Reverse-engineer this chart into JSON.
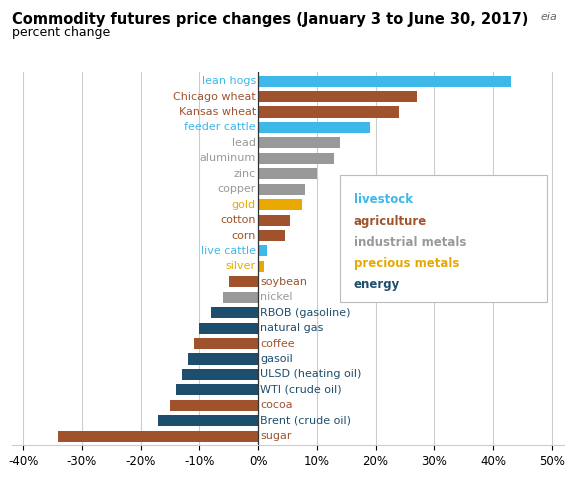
{
  "title": "Commodity futures price changes (January 3 to June 30, 2017)",
  "subtitle": "percent change",
  "categories": [
    "lean hogs",
    "Chicago wheat",
    "Kansas wheat",
    "feeder cattle",
    "lead",
    "aluminum",
    "zinc",
    "copper",
    "gold",
    "cotton",
    "corn",
    "live cattle",
    "silver",
    "soybean",
    "nickel",
    "RBOB (gasoline)",
    "natural gas",
    "coffee",
    "gasoil",
    "ULSD (heating oil)",
    "WTI (crude oil)",
    "cocoa",
    "Brent (crude oil)",
    "sugar"
  ],
  "values": [
    43,
    27,
    24,
    19,
    14,
    13,
    10,
    8,
    7.5,
    5.5,
    4.5,
    1.5,
    1,
    -5,
    -6,
    -8,
    -10,
    -11,
    -12,
    -13,
    -14,
    -15,
    -17,
    -34
  ],
  "colors": [
    "#3db8e8",
    "#a0522d",
    "#a0522d",
    "#3db8e8",
    "#999999",
    "#999999",
    "#999999",
    "#999999",
    "#e8a800",
    "#a0522d",
    "#a0522d",
    "#3db8e8",
    "#e8a800",
    "#a0522d",
    "#999999",
    "#1d4e6e",
    "#1d4e6e",
    "#a0522d",
    "#1d4e6e",
    "#1d4e6e",
    "#1d4e6e",
    "#a0522d",
    "#1d4e6e",
    "#a0522d"
  ],
  "legend_labels": [
    "livestock",
    "agriculture",
    "industrial metals",
    "precious metals",
    "energy"
  ],
  "legend_colors": [
    "#3db8e8",
    "#a0522d",
    "#999999",
    "#e8a800",
    "#1d4e6e"
  ],
  "xlim": [
    -42,
    52
  ],
  "xticks": [
    -40,
    -30,
    -20,
    -10,
    0,
    10,
    20,
    30,
    40,
    50
  ],
  "xtick_labels": [
    "-40%",
    "-30%",
    "-20%",
    "-10%",
    "0%",
    "10%",
    "20%",
    "30%",
    "40%",
    "50%"
  ],
  "background_color": "#ffffff",
  "grid_color": "#cccccc",
  "title_fontsize": 10.5,
  "subtitle_fontsize": 9,
  "label_fontsize": 8,
  "tick_fontsize": 8.5,
  "bar_height": 0.72
}
